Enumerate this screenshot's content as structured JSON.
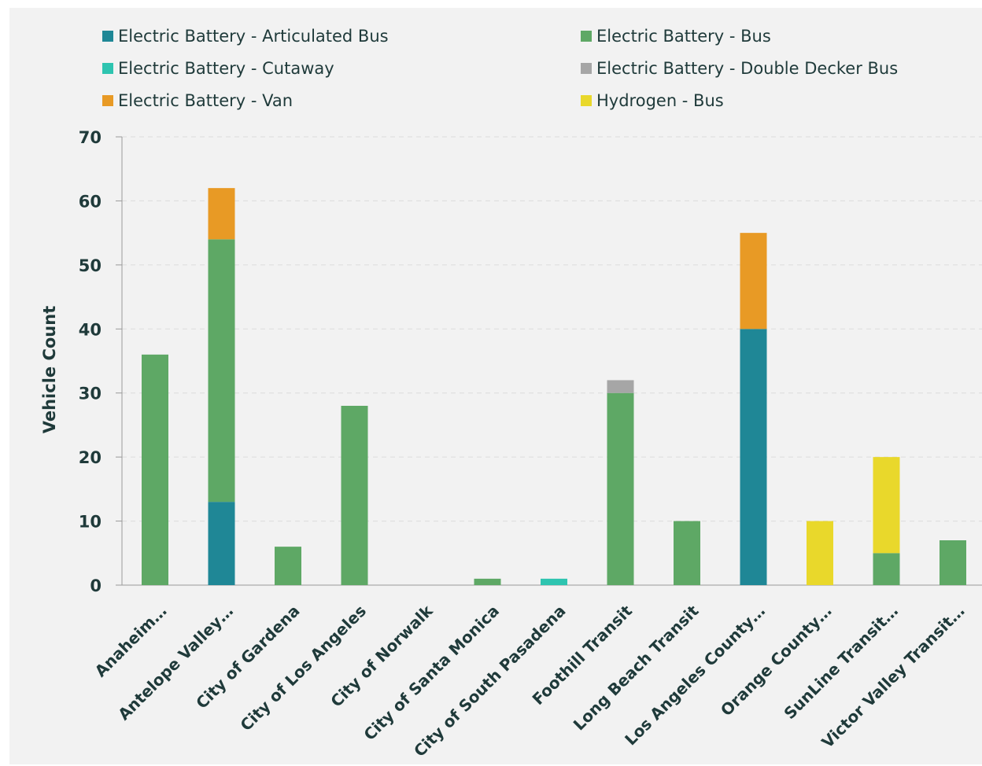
{
  "chart_data": {
    "type": "bar",
    "stacked": true,
    "title": "",
    "xlabel": "",
    "ylabel": "Vehicle Count",
    "ylim": [
      0,
      70
    ],
    "yticks": [
      0,
      10,
      20,
      30,
      40,
      50,
      60,
      70
    ],
    "grid": "horizontal dashed",
    "legend_position": "top",
    "categories": [
      "Anaheim…",
      "Antelope Valley…",
      "City of Gardena",
      "City of Los Angeles",
      "City of Norwalk",
      "City of Santa Monica",
      "City of South Pasadena",
      "Foothill Transit",
      "Long Beach Transit",
      "Los Angeles County…",
      "Orange County…",
      "SunLine Transit…",
      "Victor Valley Transit…"
    ],
    "series": [
      {
        "name": "Electric Battery - Articulated Bus",
        "color": "#1f8796",
        "values": [
          0,
          13,
          0,
          0,
          0,
          0,
          0,
          0,
          0,
          40,
          0,
          0,
          0
        ]
      },
      {
        "name": "Electric Battery - Bus",
        "color": "#5ea865",
        "values": [
          36,
          41,
          6,
          28,
          0,
          1,
          0,
          30,
          10,
          0,
          0,
          5,
          7
        ]
      },
      {
        "name": "Electric Battery - Cutaway",
        "color": "#2ec4b0",
        "values": [
          0,
          0,
          0,
          0,
          0,
          0,
          1,
          0,
          0,
          0,
          0,
          0,
          0
        ]
      },
      {
        "name": "Electric Battery - Double Decker Bus",
        "color": "#a6a6a6",
        "values": [
          0,
          0,
          0,
          0,
          0,
          0,
          0,
          2,
          0,
          0,
          0,
          0,
          0
        ]
      },
      {
        "name": "Electric Battery - Van",
        "color": "#e89a25",
        "values": [
          0,
          8,
          0,
          0,
          0,
          0,
          0,
          0,
          0,
          15,
          0,
          0,
          0
        ]
      },
      {
        "name": "Hydrogen - Bus",
        "color": "#e9d82b",
        "values": [
          0,
          0,
          0,
          0,
          0,
          0,
          0,
          0,
          0,
          0,
          10,
          15,
          0
        ]
      }
    ]
  }
}
